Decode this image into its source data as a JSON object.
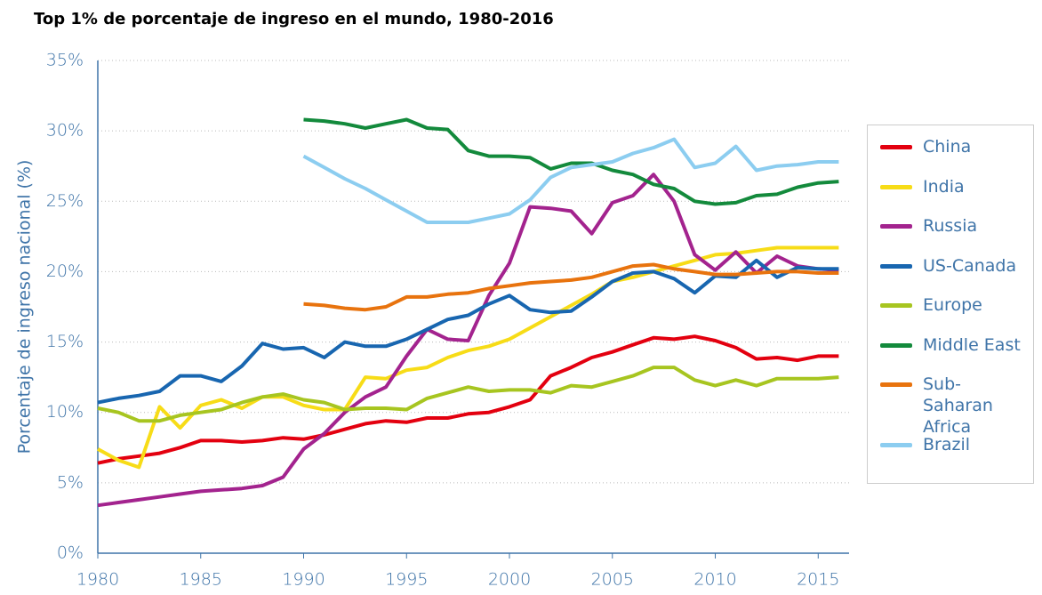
{
  "chart_data": {
    "type": "line",
    "title": "Top 1% de porcentaje de ingreso en el mundo, 1980-2016",
    "y_label": "Porcentaje de ingreso nacional (%)",
    "x": [
      1980,
      1981,
      1982,
      1983,
      1984,
      1985,
      1986,
      1987,
      1988,
      1989,
      1990,
      1991,
      1992,
      1993,
      1994,
      1995,
      1996,
      1997,
      1998,
      1999,
      2000,
      2001,
      2002,
      2003,
      2004,
      2005,
      2006,
      2007,
      2008,
      2009,
      2010,
      2011,
      2012,
      2013,
      2014,
      2015,
      2016
    ],
    "xlim": [
      1980,
      2016.5
    ],
    "xticks": [
      1980,
      1985,
      1990,
      1995,
      2000,
      2005,
      2010,
      2015
    ],
    "ylim": [
      0,
      35
    ],
    "yticks": [
      {
        "value": 0,
        "label": "0%"
      },
      {
        "value": 5,
        "label": "5%"
      },
      {
        "value": 10,
        "label": "10%"
      },
      {
        "value": 15,
        "label": "15%"
      },
      {
        "value": 20,
        "label": "20%"
      },
      {
        "value": 25,
        "label": "25%"
      },
      {
        "value": 30,
        "label": "30%"
      },
      {
        "value": 35,
        "label": "35%"
      }
    ],
    "grid": true,
    "legend": "right",
    "series": [
      {
        "name": "China",
        "color": "#e3000f",
        "values": [
          6.4,
          6.7,
          6.9,
          7.1,
          7.5,
          8.0,
          8.0,
          7.9,
          8.0,
          8.2,
          8.1,
          8.4,
          8.8,
          9.2,
          9.4,
          9.3,
          9.6,
          9.6,
          9.9,
          10.0,
          10.4,
          10.9,
          12.6,
          13.2,
          13.9,
          14.3,
          14.8,
          15.3,
          15.2,
          15.4,
          15.1,
          14.6,
          13.8,
          13.9,
          13.7,
          14.0,
          14.0
        ]
      },
      {
        "name": "India",
        "color": "#f7dc17",
        "values": [
          7.4,
          6.6,
          6.1,
          10.4,
          8.9,
          10.5,
          10.9,
          10.3,
          11.1,
          11.1,
          10.5,
          10.2,
          10.2,
          12.5,
          12.4,
          13.0,
          13.2,
          13.9,
          14.4,
          14.7,
          15.2,
          16.0,
          16.8,
          17.6,
          18.4,
          19.3,
          19.6,
          20.0,
          20.4,
          20.8,
          21.2,
          21.3,
          21.5,
          21.7,
          21.7,
          21.7,
          21.7
        ]
      },
      {
        "name": "Russia",
        "color": "#a3238e",
        "values": [
          3.4,
          3.6,
          3.8,
          4.0,
          4.2,
          4.4,
          4.5,
          4.6,
          4.8,
          5.4,
          7.4,
          8.5,
          10.0,
          11.1,
          11.8,
          14.0,
          15.9,
          15.2,
          15.1,
          18.3,
          20.6,
          24.6,
          24.5,
          24.3,
          22.7,
          24.9,
          25.4,
          26.9,
          25.0,
          21.2,
          20.1,
          21.4,
          19.9,
          21.1,
          20.4,
          20.2,
          20.1
        ]
      },
      {
        "name": "US-Canada",
        "color": "#1866b0",
        "values": [
          10.7,
          11.0,
          11.2,
          11.5,
          12.6,
          12.6,
          12.2,
          13.3,
          14.9,
          14.5,
          14.6,
          13.9,
          15.0,
          14.7,
          14.7,
          15.2,
          15.9,
          16.6,
          16.9,
          17.7,
          18.3,
          17.3,
          17.1,
          17.2,
          18.2,
          19.3,
          19.9,
          20.0,
          19.5,
          18.5,
          19.7,
          19.6,
          20.8,
          19.6,
          20.3,
          20.2,
          20.2
        ]
      },
      {
        "name": "Europe",
        "color": "#a7c520",
        "values": [
          10.3,
          10.0,
          9.4,
          9.4,
          9.8,
          10.0,
          10.2,
          10.7,
          11.1,
          11.3,
          10.9,
          10.7,
          10.2,
          10.3,
          10.3,
          10.2,
          11.0,
          11.4,
          11.8,
          11.5,
          11.6,
          11.6,
          11.4,
          11.9,
          11.8,
          12.2,
          12.6,
          13.2,
          13.2,
          12.3,
          11.9,
          12.3,
          11.9,
          12.4,
          12.4,
          12.4,
          12.5
        ]
      },
      {
        "name": "Middle East",
        "color": "#138a3c",
        "values": [
          null,
          null,
          null,
          null,
          null,
          null,
          null,
          null,
          null,
          null,
          30.8,
          30.7,
          30.5,
          30.2,
          30.5,
          30.8,
          30.2,
          30.1,
          28.6,
          28.2,
          28.2,
          28.1,
          27.3,
          27.7,
          27.7,
          27.2,
          26.9,
          26.2,
          25.9,
          25.0,
          24.8,
          24.9,
          25.4,
          25.5,
          26.0,
          26.3,
          26.4
        ]
      },
      {
        "name": "Sub-Saharan Africa",
        "color": "#e8730e",
        "values": [
          null,
          null,
          null,
          null,
          null,
          null,
          null,
          null,
          null,
          null,
          17.7,
          17.6,
          17.4,
          17.3,
          17.5,
          18.2,
          18.2,
          18.4,
          18.5,
          18.8,
          19.0,
          19.2,
          19.3,
          19.4,
          19.6,
          20.0,
          20.4,
          20.5,
          20.2,
          20.0,
          19.8,
          19.8,
          19.9,
          20.0,
          20.0,
          19.9,
          19.9
        ]
      },
      {
        "name": "Brazil",
        "color": "#8ccdf0",
        "values": [
          null,
          null,
          null,
          null,
          null,
          null,
          null,
          null,
          null,
          null,
          28.2,
          27.4,
          26.6,
          25.9,
          25.1,
          24.3,
          23.5,
          23.5,
          23.5,
          23.8,
          24.1,
          25.1,
          26.7,
          27.4,
          27.6,
          27.8,
          28.4,
          28.8,
          29.4,
          27.4,
          27.7,
          28.9,
          27.2,
          27.5,
          27.6,
          27.8,
          27.8
        ]
      }
    ]
  }
}
